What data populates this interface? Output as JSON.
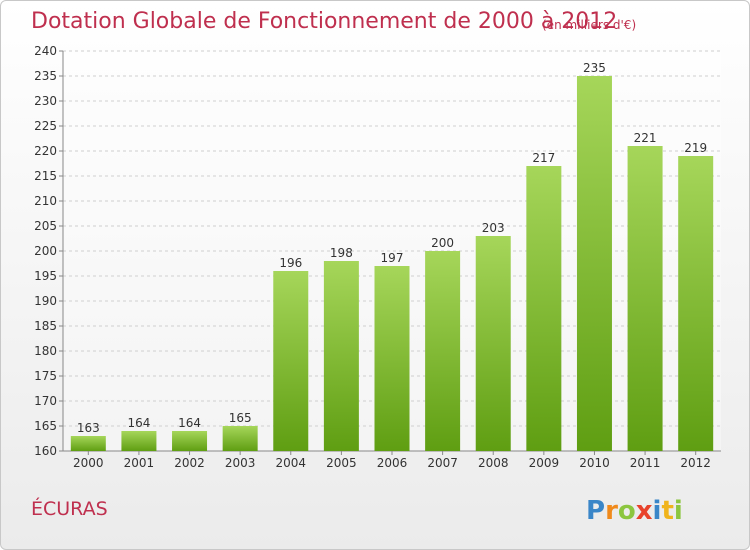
{
  "header": {
    "title": "Dotation Globale de Fonctionnement de 2000 à 2012",
    "unit_note": "(en milliers d'€)"
  },
  "footer": {
    "commune": "ÉCURAS",
    "logo_text": "Proxiti"
  },
  "colors": {
    "title": "#bf2f4e",
    "bar_top": "#a6d65a",
    "bar_bottom": "#5f9e12"
  },
  "chart_data": {
    "type": "bar",
    "title": "Dotation Globale de Fonctionnement de 2000 à 2012",
    "subtitle": "(en milliers d'€)",
    "categories": [
      "2000",
      "2001",
      "2002",
      "2003",
      "2004",
      "2005",
      "2006",
      "2007",
      "2008",
      "2009",
      "2010",
      "2011",
      "2012"
    ],
    "values": [
      163,
      164,
      164,
      165,
      196,
      198,
      197,
      200,
      203,
      217,
      235,
      221,
      219
    ],
    "xlabel": "",
    "ylabel": "",
    "ylim": [
      160,
      240
    ],
    "yticks": [
      160,
      165,
      170,
      175,
      180,
      185,
      190,
      195,
      200,
      205,
      210,
      215,
      220,
      225,
      230,
      235,
      240
    ],
    "grid": "horizontal",
    "data_labels": true
  }
}
